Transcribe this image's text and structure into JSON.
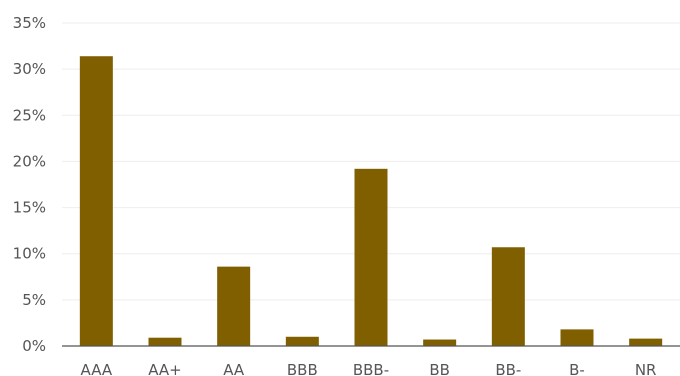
{
  "chart_data": {
    "type": "bar",
    "title": "",
    "xlabel": "",
    "ylabel": "",
    "categories": [
      "AAA",
      "AA+",
      "AA",
      "BBB",
      "BBB-",
      "BB",
      "BB-",
      "B-",
      "NR"
    ],
    "values": [
      31.4,
      0.9,
      8.6,
      1.0,
      19.2,
      0.7,
      10.7,
      1.8,
      0.8
    ],
    "ylim": [
      0,
      35
    ],
    "yticks": [
      0,
      5,
      10,
      15,
      20,
      25,
      30,
      35
    ],
    "ytick_labels": [
      "0%",
      "5%",
      "10%",
      "15%",
      "20%",
      "25%",
      "30%",
      "35%"
    ],
    "grid": true,
    "legend": "none",
    "bar_color": "#7f5f00",
    "grid_color": "#eeeeee",
    "axis_color": "#555555",
    "text_color": "#555555"
  }
}
